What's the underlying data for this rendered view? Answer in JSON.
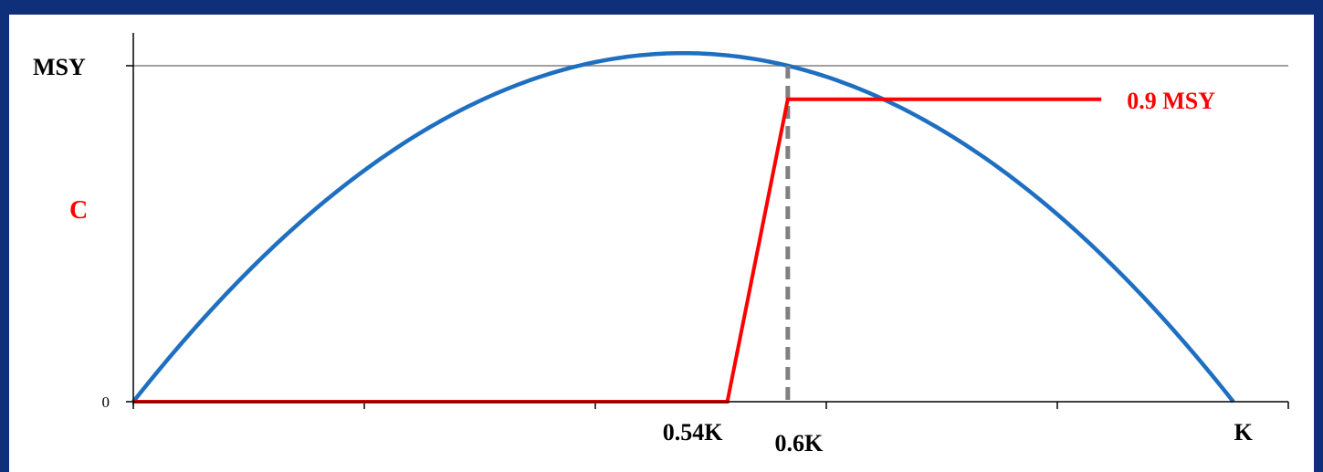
{
  "chart_data": {
    "type": "line",
    "x_domain": [
      0,
      1.05
    ],
    "y_domain": [
      0,
      1
    ],
    "x_tick_values": [
      0,
      0.21,
      0.42,
      0.63,
      0.84,
      1.05
    ],
    "x_labels": [
      {
        "text": "0.54K",
        "x": 0.54
      },
      {
        "text": "0.6K",
        "x": 0.6
      },
      {
        "text": "K",
        "x": 1.0
      }
    ],
    "y_labels": [
      {
        "text": "MSY",
        "y": 1
      },
      {
        "text": "0",
        "y": 0
      }
    ],
    "ylabel": "C",
    "series": [
      {
        "role": "surplus-production",
        "color": "#1f6fc1",
        "curve": "parabola",
        "x_start": 0,
        "x_peak": 0.595,
        "x_end": 1.0,
        "y_peak": 1
      },
      {
        "role": "harvest-control-rule",
        "name": "0.9 MSY",
        "color": "#ff0000",
        "points": [
          [
            0,
            0
          ],
          [
            0.54,
            0
          ],
          [
            0.595,
            0.9
          ],
          [
            0.88,
            0.9
          ]
        ]
      }
    ],
    "reference_lines": [
      {
        "type": "horizontal",
        "y": 1,
        "color": "#808080"
      },
      {
        "type": "vertical",
        "x": 0.595,
        "dashed": true,
        "color": "#808080"
      }
    ],
    "colors": {
      "axis": "#000000",
      "label_red": "#ff0000"
    }
  }
}
